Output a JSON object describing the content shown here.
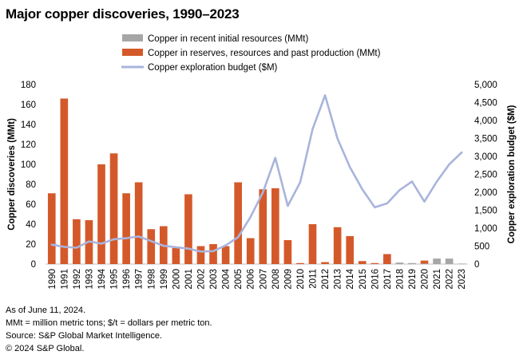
{
  "title": "Major copper discoveries, 1990–2023",
  "footnotes": [
    "As of June 11, 2024.",
    "MMt = million metric tons; $/t = dollars per metric ton.",
    "Source: S&P Global Market Intelligence.",
    "© 2024 S&P Global."
  ],
  "colors": {
    "initial": "#a6a6a6",
    "reserves": "#d4592a",
    "budget": "#a9b4dc",
    "axis": "#bfbfbf"
  },
  "chart_data": {
    "type": "bar",
    "categories": [
      "1990",
      "1991",
      "1992",
      "1993",
      "1994",
      "1995",
      "1996",
      "1997",
      "1998",
      "1999",
      "2000",
      "2001",
      "2002",
      "2003",
      "2004",
      "2005",
      "2006",
      "2007",
      "2008",
      "2009",
      "2010",
      "2011",
      "2012",
      "2013",
      "2014",
      "2015",
      "2016",
      "2017",
      "2018",
      "2019",
      "2020",
      "2021",
      "2022",
      "2023"
    ],
    "series": [
      {
        "name": "Copper in recent initial resources (MMt)",
        "kind": "bar",
        "axis": "left",
        "values": [
          0,
          0,
          0,
          0,
          0,
          0,
          0,
          0,
          0,
          0,
          0,
          0,
          0,
          0,
          0,
          0,
          0,
          0,
          0,
          0,
          0,
          0,
          0,
          0,
          0,
          0,
          0,
          0,
          1.5,
          1,
          0.5,
          5.5,
          5.5,
          0.5
        ]
      },
      {
        "name": "Copper in reserves, resources and past production (MMt)",
        "kind": "bar",
        "axis": "left",
        "values": [
          71,
          166,
          45,
          44,
          100,
          111,
          71,
          82,
          35,
          38,
          16,
          70,
          18,
          20,
          18,
          82,
          26,
          75,
          76,
          24,
          1,
          40,
          2,
          37,
          28,
          3,
          1,
          10,
          0.5,
          0.5,
          3.5,
          0,
          0,
          0
        ]
      },
      {
        "name": "Copper exploration budget ($M)",
        "kind": "line",
        "axis": "right",
        "values": [
          540,
          480,
          455,
          630,
          570,
          690,
          720,
          770,
          640,
          510,
          470,
          430,
          350,
          360,
          520,
          750,
          1310,
          2000,
          2960,
          1620,
          2280,
          3760,
          4700,
          3500,
          2700,
          2080,
          1580,
          1690,
          2060,
          2300,
          1740,
          2300,
          2780,
          3110
        ]
      }
    ],
    "xlabel": "",
    "ylabel": "Copper discoveries (MMt)",
    "y2label": "Copper exploration budget ($M)",
    "ylim": [
      0,
      180
    ],
    "y2lim": [
      0,
      5000
    ],
    "yticks": [
      "0",
      "20",
      "40",
      "60",
      "80",
      "100",
      "120",
      "140",
      "160",
      "180"
    ],
    "y2ticks": [
      "0",
      "500",
      "1,000",
      "1,500",
      "2,000",
      "2,500",
      "3,000",
      "3,500",
      "4,000",
      "4,500",
      "5,000"
    ],
    "grid": false,
    "legend": "top-center"
  }
}
